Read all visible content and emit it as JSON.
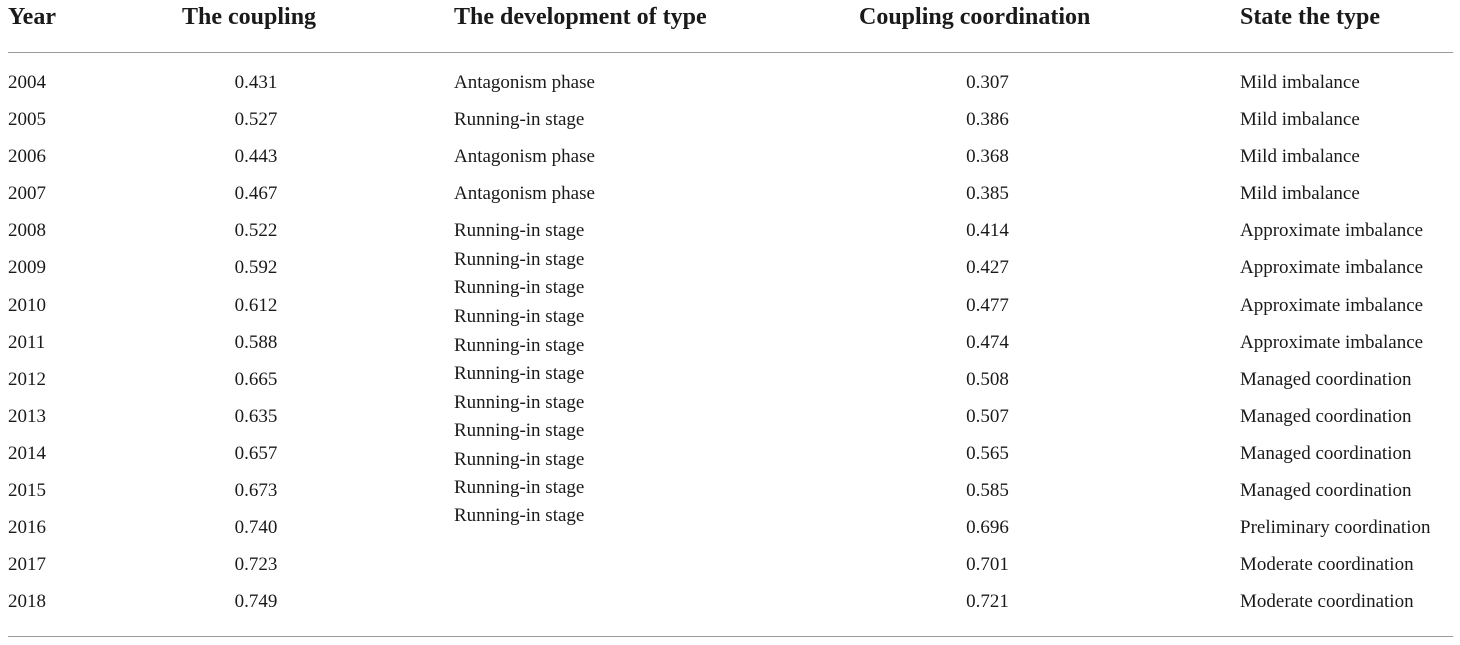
{
  "headers": {
    "year": "Year",
    "coupling": "The coupling",
    "development_type": "The development of type",
    "coupling_coordination": "Coupling coordination",
    "state_type": "State the type"
  },
  "rows": [
    {
      "year": "2004",
      "coupling": "0.431",
      "coordination": "0.307",
      "state": "Mild imbalance"
    },
    {
      "year": "2005",
      "coupling": "0.527",
      "coordination": "0.386",
      "state": "Mild imbalance"
    },
    {
      "year": "2006",
      "coupling": "0.443",
      "coordination": "0.368",
      "state": "Mild imbalance"
    },
    {
      "year": "2007",
      "coupling": "0.467",
      "coordination": "0.385",
      "state": "Mild imbalance"
    },
    {
      "year": "2008",
      "coupling": "0.522",
      "coordination": "0.414",
      "state": "Approximate imbalance"
    },
    {
      "year": "2009",
      "coupling": "0.592",
      "coordination": "0.427",
      "state": "Approximate imbalance"
    },
    {
      "year": "2010",
      "coupling": "0.612",
      "coordination": "0.477",
      "state": "Approximate imbalance"
    },
    {
      "year": "2011",
      "coupling": "0.588",
      "coordination": "0.474",
      "state": "Approximate imbalance"
    },
    {
      "year": "2012",
      "coupling": "0.665",
      "coordination": "0.508",
      "state": "Managed coordination"
    },
    {
      "year": "2013",
      "coupling": "0.635",
      "coordination": "0.507",
      "state": "Managed coordination"
    },
    {
      "year": "2014",
      "coupling": "0.657",
      "coordination": "0.565",
      "state": "Managed coordination"
    },
    {
      "year": "2015",
      "coupling": "0.673",
      "coordination": "0.585",
      "state": "Managed coordination"
    },
    {
      "year": "2016",
      "coupling": "0.740",
      "coordination": "0.696",
      "state": "Preliminary coordination"
    },
    {
      "year": "2017",
      "coupling": "0.723",
      "coordination": "0.701",
      "state": "Moderate coordination"
    },
    {
      "year": "2018",
      "coupling": "0.749",
      "coordination": "0.721",
      "state": "Moderate coordination"
    }
  ],
  "development_types": [
    "Antagonism phase",
    "Running-in stage",
    "Antagonism phase",
    "Antagonism phase",
    "Running-in stage",
    "Running-in stage",
    "Running-in stage",
    "Running-in stage",
    "Running-in stage",
    "Running-in stage",
    "Running-in stage",
    "Running-in stage",
    "Running-in stage",
    "Running-in stage",
    "Running-in stage"
  ]
}
